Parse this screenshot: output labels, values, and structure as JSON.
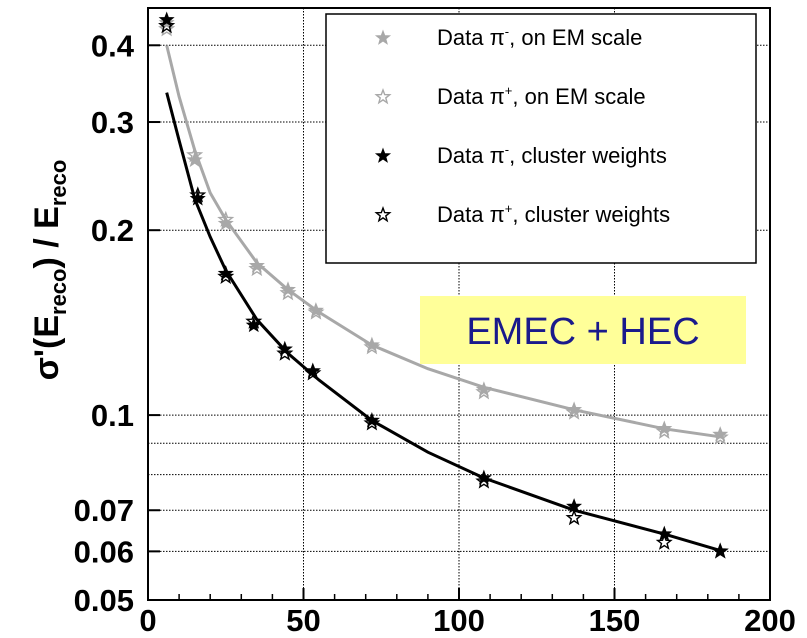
{
  "chart_data": {
    "type": "scatter",
    "ylabel": "σ'(E_reco) / E_reco",
    "ylabel_parts": {
      "sigma": "σ'(E",
      "sub1": "reco",
      "mid": ") / E",
      "sub2": "reco"
    },
    "y_scale": "log",
    "xlim": [
      0,
      200
    ],
    "ylim": [
      0.05,
      0.46
    ],
    "x_ticks": [
      0,
      50,
      100,
      150,
      200
    ],
    "y_ticks": [
      0.05,
      0.06,
      0.07,
      0.1,
      0.2,
      0.3,
      0.4
    ],
    "y_grid": [
      0.06,
      0.07,
      0.08,
      0.09,
      0.1,
      0.2,
      0.3,
      0.4
    ],
    "x_grid": [
      50,
      100,
      150
    ],
    "legend_position": "top-right",
    "annotation": {
      "text": "EMEC + HEC",
      "background": "#ffff99",
      "color": "#1a1a8c"
    },
    "colors": {
      "em_scale": "#a8a8a8",
      "cluster_weights": "#000000"
    },
    "series": [
      {
        "name": "Data π⁻, on EM scale",
        "legend": {
          "pre": "Data π",
          "sup": "-",
          "post": ", on EM scale"
        },
        "marker": "filled-star",
        "color": "#a8a8a8",
        "x": [
          6,
          15,
          25,
          35,
          45,
          54,
          72,
          108,
          137,
          166,
          184
        ],
        "y": [
          0.435,
          0.26,
          0.205,
          0.175,
          0.16,
          0.148,
          0.13,
          0.11,
          0.102,
          0.095,
          0.093
        ]
      },
      {
        "name": "Data π⁺, on EM scale",
        "legend": {
          "pre": "Data π",
          "sup": "+",
          "post": ", on EM scale"
        },
        "marker": "open-star",
        "color": "#a8a8a8",
        "x": [
          6,
          15,
          25,
          35,
          45,
          54,
          72,
          108,
          137,
          166,
          184
        ],
        "y": [
          0.425,
          0.265,
          0.208,
          0.173,
          0.158,
          0.147,
          0.129,
          0.109,
          0.101,
          0.094,
          0.092
        ]
      },
      {
        "name": "Data π⁻, cluster weights",
        "legend": {
          "pre": "Data π",
          "sup": "-",
          "post": ", cluster weights"
        },
        "marker": "filled-star",
        "color": "#000000",
        "x": [
          6,
          16,
          25,
          34,
          44,
          53,
          72,
          108,
          137,
          166,
          184
        ],
        "y": [
          0.44,
          0.225,
          0.17,
          0.14,
          0.128,
          0.118,
          0.098,
          0.079,
          0.071,
          0.064,
          0.06
        ]
      },
      {
        "name": "Data π⁺, cluster weights",
        "legend": {
          "pre": "Data π",
          "sup": "+",
          "post": ", cluster weights"
        },
        "marker": "open-star",
        "color": "#000000",
        "x": [
          6,
          16,
          25,
          34,
          44,
          53,
          72,
          108,
          137,
          166,
          184
        ],
        "y": [
          0.43,
          0.228,
          0.168,
          0.142,
          0.126,
          0.117,
          0.097,
          0.078,
          0.068,
          0.062,
          0.06
        ]
      }
    ],
    "fits": [
      {
        "color": "#a8a8a8",
        "x": [
          6,
          10,
          15,
          20,
          25,
          35,
          45,
          55,
          72,
          90,
          108,
          137,
          166,
          185
        ],
        "y": [
          0.4,
          0.33,
          0.27,
          0.23,
          0.208,
          0.177,
          0.16,
          0.147,
          0.13,
          0.119,
          0.111,
          0.102,
          0.095,
          0.092
        ]
      },
      {
        "color": "#000000",
        "x": [
          6,
          10,
          15,
          20,
          25,
          35,
          45,
          55,
          72,
          90,
          108,
          137,
          166,
          185
        ],
        "y": [
          0.335,
          0.28,
          0.225,
          0.195,
          0.172,
          0.143,
          0.126,
          0.114,
          0.098,
          0.087,
          0.079,
          0.07,
          0.064,
          0.06
        ]
      }
    ]
  }
}
